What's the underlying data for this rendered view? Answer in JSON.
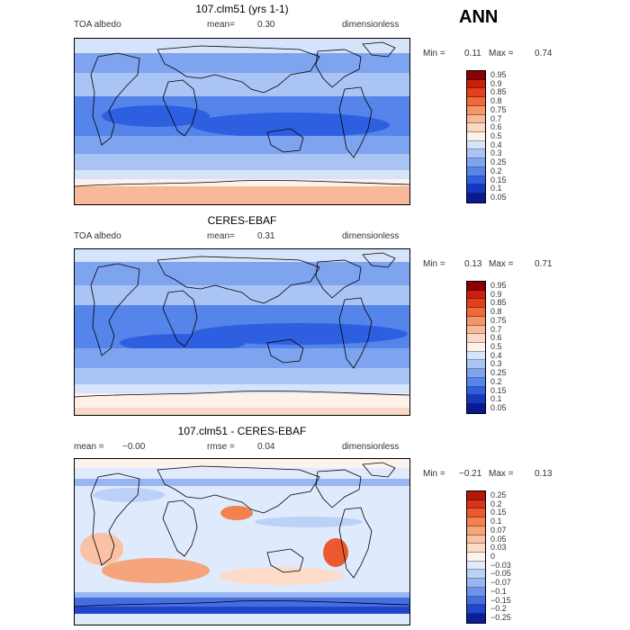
{
  "season": "ANN",
  "panels": [
    {
      "title": "107.clm51 (yrs 1-1)",
      "left": "TOA albedo",
      "mean_label": "mean=",
      "mean_value": "0.30",
      "right": "dimensionless",
      "min_label": "Min =",
      "min_value": "0.11",
      "max_label": "Max =",
      "max_value": "0.74",
      "levels": [
        "0.95",
        "0.9",
        "0.85",
        "0.8",
        "0.75",
        "0.7",
        "0.6",
        "0.5",
        "0.4",
        "0.3",
        "0.25",
        "0.2",
        "0.15",
        "0.1",
        "0.05"
      ],
      "colors": [
        "#8b0000",
        "#c9200c",
        "#e2401c",
        "#ee6a3a",
        "#f5956a",
        "#f8b99a",
        "#fbd8c6",
        "#fdf1ea",
        "#d6e4fb",
        "#a9c4f5",
        "#7fa4ef",
        "#5585ea",
        "#2d5fe0",
        "#1637c0",
        "#0a1891"
      ]
    },
    {
      "title": "CERES-EBAF",
      "left": "TOA albedo",
      "mean_label": "mean=",
      "mean_value": "0.31",
      "right": "dimensionless",
      "min_label": "Min =",
      "min_value": "0.13",
      "max_label": "Max =",
      "max_value": "0.71",
      "levels": [
        "0.95",
        "0.9",
        "0.85",
        "0.8",
        "0.75",
        "0.7",
        "0.6",
        "0.5",
        "0.4",
        "0.3",
        "0.25",
        "0.2",
        "0.15",
        "0.1",
        "0.05"
      ],
      "colors": [
        "#8b0000",
        "#c9200c",
        "#e2401c",
        "#ee6a3a",
        "#f5956a",
        "#f8b99a",
        "#fbd8c6",
        "#fdf1ea",
        "#d6e4fb",
        "#a9c4f5",
        "#7fa4ef",
        "#5585ea",
        "#2d5fe0",
        "#1637c0",
        "#0a1891"
      ]
    },
    {
      "title": "107.clm51 - CERES-EBAF",
      "left_label": "mean =",
      "left_value": "−0.00",
      "rmse_label": "rmse =",
      "rmse_value": "0.04",
      "right": "dimensionless",
      "min_label": "Min =",
      "min_value": "−0.21",
      "max_label": "Max =",
      "max_value": "0.13",
      "levels": [
        "0.25",
        "0.2",
        "0.15",
        "0.1",
        "0.07",
        "0.05",
        "0.03",
        "0",
        "−0.03",
        "−0.05",
        "−0.07",
        "−0.1",
        "−0.15",
        "−0.2",
        "−0.25"
      ],
      "colors": [
        "#b7160a",
        "#d83218",
        "#ea5a2e",
        "#f2814f",
        "#f6a47c",
        "#f9c2a4",
        "#fcdcc9",
        "#fdf3ec",
        "#dfeafc",
        "#bcd1f7",
        "#98b6f1",
        "#6f93ea",
        "#456ee2",
        "#2146cc",
        "#0a1e9a"
      ]
    }
  ]
}
